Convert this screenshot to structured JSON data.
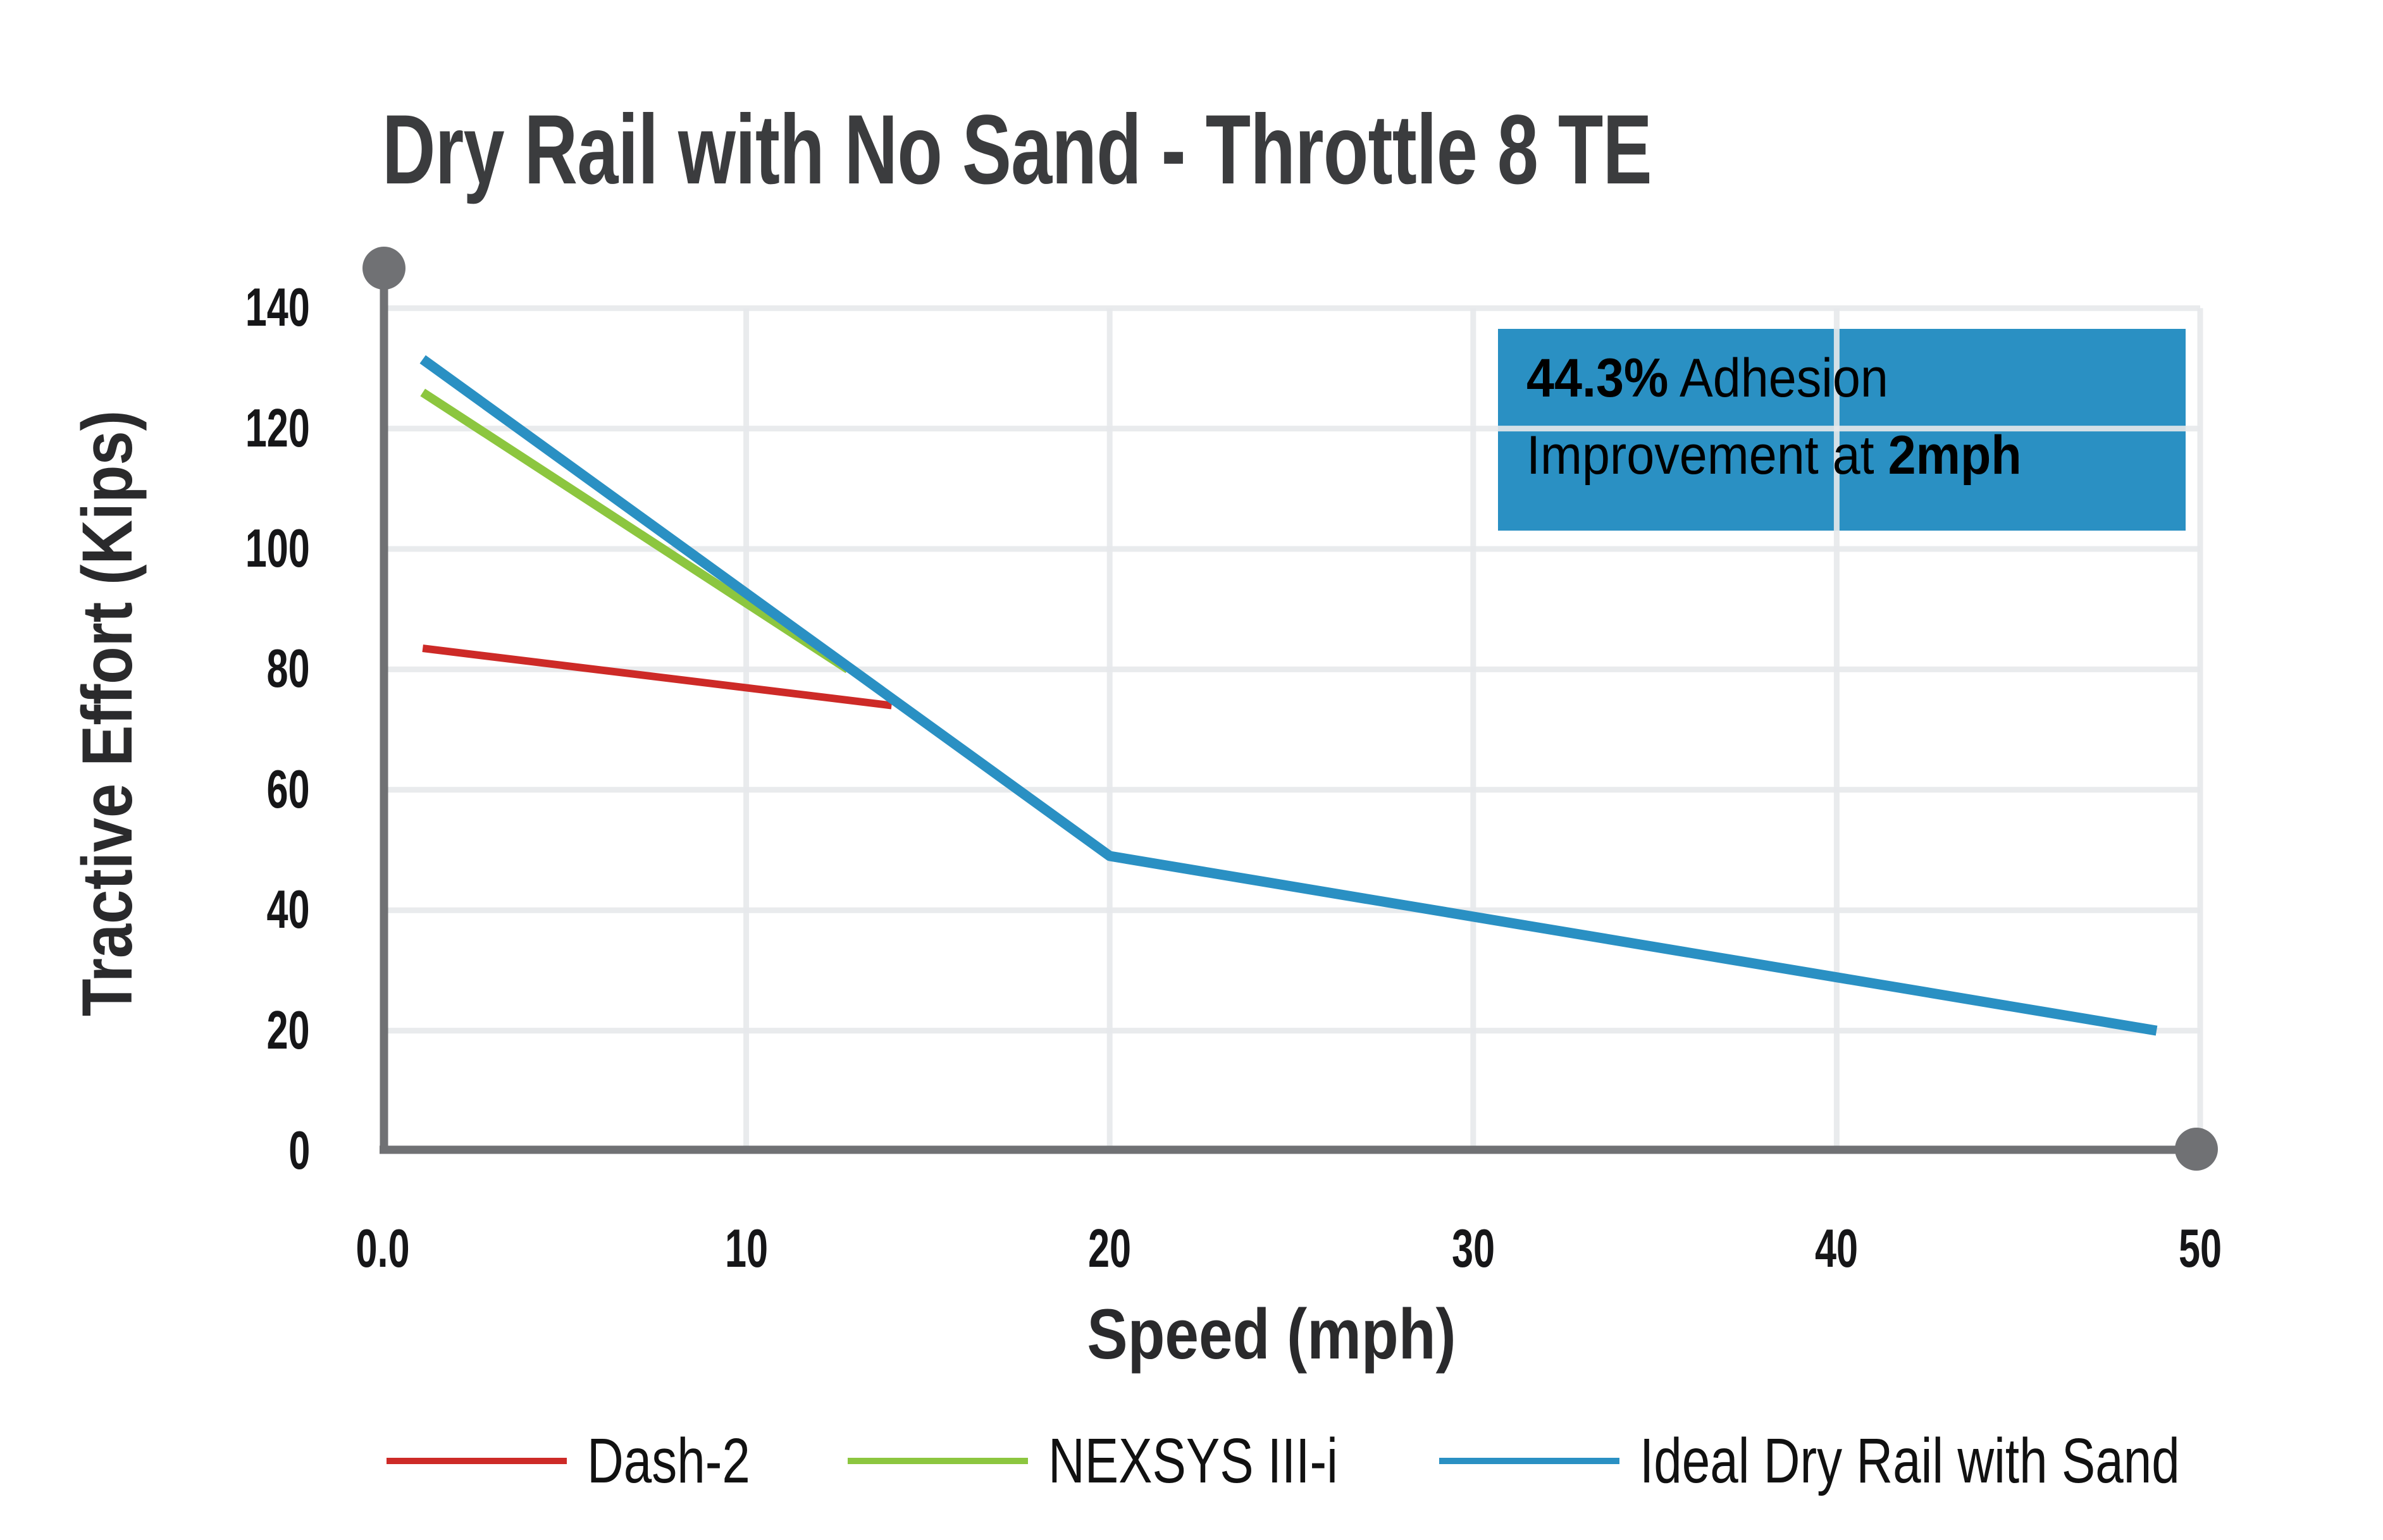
{
  "title": "Dry Rail with No Sand - Throttle 8 TE",
  "chart_data": {
    "type": "line",
    "title": "Dry Rail with No Sand - Throttle 8 TE",
    "xlabel": "Speed (mph)",
    "ylabel": "Tractive Effort (Kips)",
    "xlim": [
      0,
      50
    ],
    "ylim": [
      0,
      140
    ],
    "grid": true,
    "legend_position": "bottom",
    "x_ticks": {
      "labels": [
        "0.0",
        "10",
        "20",
        "30",
        "40",
        "50"
      ],
      "values": [
        0,
        10,
        20,
        30,
        40,
        50
      ]
    },
    "y_ticks": {
      "labels": [
        "0",
        "20",
        "40",
        "60",
        "80",
        "100",
        "120",
        "140"
      ],
      "values": [
        0,
        20,
        40,
        60,
        80,
        100,
        120,
        140
      ]
    },
    "series": [
      {
        "name": "Dash-2",
        "color": "#CD2A27",
        "points": [
          [
            1.1,
            83.5
          ],
          [
            14,
            74
          ]
        ]
      },
      {
        "name": "NEXSYS III-i",
        "color": "#8CC63F",
        "points": [
          [
            1.1,
            126
          ],
          [
            12.8,
            80
          ]
        ]
      },
      {
        "name": "Ideal Dry Rail with Sand",
        "color": "#2A90C3",
        "points": [
          [
            1.1,
            131.5
          ],
          [
            20,
            49
          ],
          [
            48.8,
            20
          ]
        ]
      }
    ],
    "annotation": {
      "line1_bold": "44.3%",
      "line1_rest": " Adhesion",
      "line2_rest": "Improvement at ",
      "line2_bold": "2mph",
      "box_color": "#2A90C3",
      "text_color": "#000000"
    }
  },
  "colors": {
    "axis": "#707174",
    "gridline": "#E7E9EA",
    "title_text": "#3B3C3E",
    "tick_text": "#161618",
    "legend_text": "#111111",
    "background": "#FFFFFF"
  }
}
